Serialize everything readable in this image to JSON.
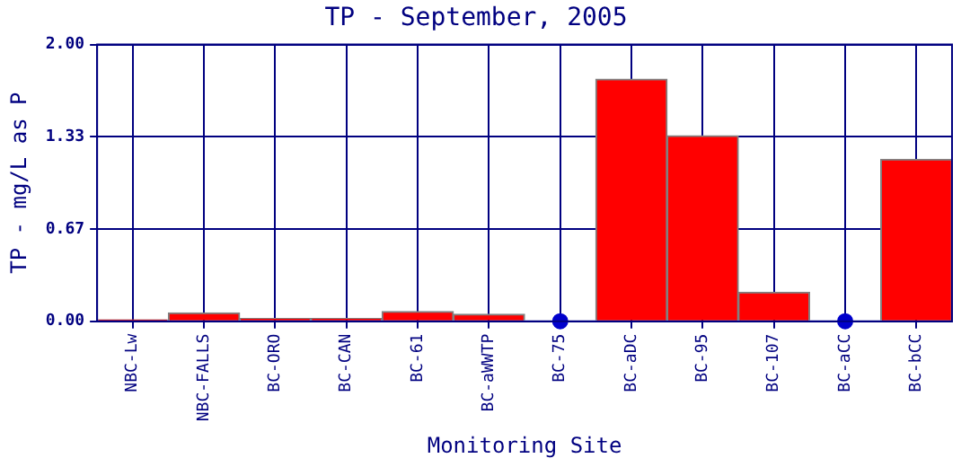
{
  "chart_data": {
    "type": "bar",
    "title": "TP - September, 2005",
    "xlabel": "Monitoring Site",
    "ylabel": "TP - mg/L as P",
    "categories": [
      "NBC-Lw",
      "NBC-FALLS",
      "BC-ORO",
      "BC-CAN",
      "BC-61",
      "BC-aWWTP",
      "BC-75",
      "BC-aDC",
      "BC-95",
      "BC-107",
      "BC-aCC",
      "BC-bCC"
    ],
    "series": [
      {
        "color": "#ff0000",
        "values": [
          0.01,
          0.06,
          0.02,
          0.02,
          0.07,
          0.05,
          null,
          1.75,
          1.34,
          0.21,
          null,
          1.17
        ]
      },
      {
        "type": "scatter",
        "color": "#0000cc",
        "x": [
          "BC-75",
          "BC-aCC"
        ],
        "values": [
          0,
          0
        ]
      }
    ],
    "ylim": [
      0,
      2
    ],
    "yticks": [
      {
        "value": 0,
        "label": "0.00"
      },
      {
        "value": 0.667,
        "label": "0.67"
      },
      {
        "value": 1.333,
        "label": "1.33"
      },
      {
        "value": 2,
        "label": "2.00"
      }
    ],
    "grid": true,
    "legend": false,
    "marker": "circle"
  }
}
